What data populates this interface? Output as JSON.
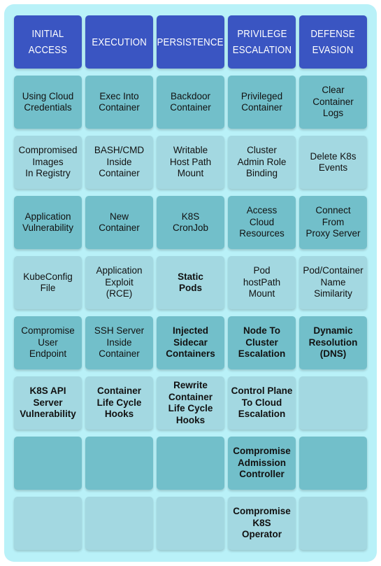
{
  "headers": [
    "INITIAL\nACCESS",
    "EXECUTION",
    "PERSISTENCE",
    "PRIVILEGE\nESCALATION",
    "DEFENSE\nEVASION"
  ],
  "rows": [
    [
      {
        "text": "Using Cloud\nCredentials",
        "bold": false
      },
      {
        "text": "Exec Into\nContainer",
        "bold": false
      },
      {
        "text": "Backdoor\nContainer",
        "bold": false
      },
      {
        "text": "Privileged\nContainer",
        "bold": false
      },
      {
        "text": "Clear\nContainer\nLogs",
        "bold": false
      }
    ],
    [
      {
        "text": "Compromised\nImages\nIn Registry",
        "bold": false
      },
      {
        "text": "BASH/CMD\nInside\nContainer",
        "bold": false
      },
      {
        "text": "Writable\nHost Path\nMount",
        "bold": false
      },
      {
        "text": "Cluster\nAdmin Role\nBinding",
        "bold": false
      },
      {
        "text": "Delete K8s\nEvents",
        "bold": false
      }
    ],
    [
      {
        "text": "Application\nVulnerability",
        "bold": false
      },
      {
        "text": "New\nContainer",
        "bold": false
      },
      {
        "text": "K8S\nCronJob",
        "bold": false
      },
      {
        "text": "Access\nCloud\nResources",
        "bold": false
      },
      {
        "text": "Connect\nFrom\nProxy Server",
        "bold": false
      }
    ],
    [
      {
        "text": "KubeConfig\nFile",
        "bold": false
      },
      {
        "text": "Application\nExploit\n(RCE)",
        "bold": false
      },
      {
        "text": "Static\nPods",
        "bold": true
      },
      {
        "text": "Pod\nhostPath\nMount",
        "bold": false
      },
      {
        "text": "Pod/Container\nName\nSimilarity",
        "bold": false
      }
    ],
    [
      {
        "text": "Compromise\nUser\nEndpoint",
        "bold": false
      },
      {
        "text": "SSH Server\nInside\nContainer",
        "bold": false
      },
      {
        "text": "Injected\nSidecar\nContainers",
        "bold": true
      },
      {
        "text": "Node To\nCluster\nEscalation",
        "bold": true
      },
      {
        "text": "Dynamic\nResolution\n(DNS)",
        "bold": true
      }
    ],
    [
      {
        "text": "K8S API\nServer\nVulnerability",
        "bold": true
      },
      {
        "text": "Container\nLife Cycle\nHooks",
        "bold": true
      },
      {
        "text": "Rewrite\nContainer\nLife Cycle\nHooks",
        "bold": true
      },
      {
        "text": "Control Plane\nTo Cloud\nEscalation",
        "bold": true
      },
      {
        "text": "",
        "bold": false
      }
    ],
    [
      {
        "text": "",
        "bold": false
      },
      {
        "text": "",
        "bold": false
      },
      {
        "text": "",
        "bold": false
      },
      {
        "text": "Compromise\nAdmission\nController",
        "bold": true
      },
      {
        "text": "",
        "bold": false
      }
    ],
    [
      {
        "text": "",
        "bold": false
      },
      {
        "text": "",
        "bold": false
      },
      {
        "text": "",
        "bold": false
      },
      {
        "text": "Compromise\nK8S\nOperator",
        "bold": true
      },
      {
        "text": "",
        "bold": false
      }
    ]
  ],
  "colors": {
    "panel": "#b9f1f8",
    "header": "#3a55c2",
    "cell_dark": "#72bfca",
    "cell_light": "#a3d8e1"
  }
}
